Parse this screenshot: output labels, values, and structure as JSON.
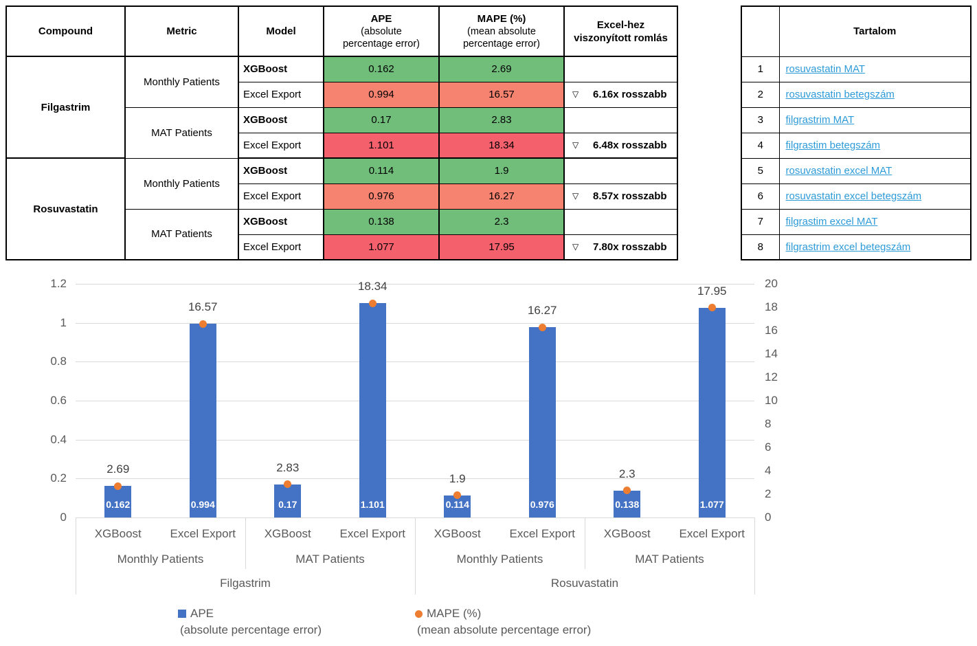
{
  "colors": {
    "bar_blue": "#4472C4",
    "point_orange": "#ED7D31",
    "good_green": "#71BE7B",
    "bad_salmon": "#F5836F",
    "worse_red": "#F4606C",
    "link_blue": "#2E9BD9",
    "grid_gray": "#D9D9D9",
    "axis_text_gray": "#595959"
  },
  "main_table": {
    "headers": {
      "compound": "Compound",
      "metric": "Metric",
      "model": "Model",
      "ape_title": "APE",
      "ape_sub1": "(absolute",
      "ape_sub2": "percentage error)",
      "mape_title": "MAPE (%)",
      "mape_sub1": "(mean absolute",
      "mape_sub2": "percentage error)",
      "romlas1": "Excel-hez",
      "romlas2": "viszonyított romlás"
    },
    "compounds": [
      "Filgastrim",
      "Rosuvastatin"
    ],
    "metric_cells": [
      "Monthly Patients",
      "MAT Patients",
      "Monthly Patients",
      "MAT Patients"
    ],
    "rows": [
      {
        "model": "XGBoost",
        "ape": "0.162",
        "mape": "2.69",
        "tri": "",
        "romlas": ""
      },
      {
        "model": "Excel Export",
        "ape": "0.994",
        "mape": "16.57",
        "tri": "▽",
        "romlas": "6.16x rosszabb"
      },
      {
        "model": "XGBoost",
        "ape": "0.17",
        "mape": "2.83",
        "tri": "",
        "romlas": ""
      },
      {
        "model": "Excel Export",
        "ape": "1.101",
        "mape": "18.34",
        "tri": "▽",
        "romlas": "6.48x rosszabb"
      },
      {
        "model": "XGBoost",
        "ape": "0.114",
        "mape": "1.9",
        "tri": "",
        "romlas": ""
      },
      {
        "model": "Excel Export",
        "ape": "0.976",
        "mape": "16.27",
        "tri": "▽",
        "romlas": "8.57x rosszabb"
      },
      {
        "model": "XGBoost",
        "ape": "0.138",
        "mape": "2.3",
        "tri": "",
        "romlas": ""
      },
      {
        "model": "Excel Export",
        "ape": "1.077",
        "mape": "17.95",
        "tri": "▽",
        "romlas": "7.80x rosszabb"
      }
    ]
  },
  "toc": {
    "title": "Tartalom",
    "items": [
      {
        "num": "1",
        "label": "rosuvastatin MAT"
      },
      {
        "num": "2",
        "label": "rosuvastatin betegszám"
      },
      {
        "num": "3",
        "label": "filgrastrim MAT"
      },
      {
        "num": "4",
        "label": "filgrastim betegszám"
      },
      {
        "num": "5",
        "label": "rosuvastatin excel MAT"
      },
      {
        "num": "6",
        "label": "rosuvastatin excel betegszám"
      },
      {
        "num": "7",
        "label": "filgrastim excel MAT"
      },
      {
        "num": "8",
        "label": "filgrastrim excel betegszám"
      }
    ]
  },
  "chart_data": {
    "type": "bar",
    "subtype": "combo bar + point (secondary axis)",
    "grid": true,
    "legend_position": "bottom",
    "category_levels": {
      "model": [
        "XGBoost",
        "Excel Export",
        "XGBoost",
        "Excel Export",
        "XGBoost",
        "Excel Export",
        "XGBoost",
        "Excel Export"
      ],
      "metric": [
        "Monthly Patients",
        "MAT Patients",
        "Monthly Patients",
        "MAT Patients"
      ],
      "compound": [
        "Filgastrim",
        "Rosuvastatin"
      ]
    },
    "series": [
      {
        "name": "APE (absolute percentage error)",
        "type": "bar",
        "axis": "left",
        "color": "#4472C4",
        "values": [
          0.162,
          0.994,
          0.17,
          1.101,
          0.114,
          0.976,
          0.138,
          1.077
        ],
        "labels": [
          "0.162",
          "0.994",
          "0.17",
          "1.101",
          "0.114",
          "0.976",
          "0.138",
          "1.077"
        ]
      },
      {
        "name": "MAPE (%) (mean absolute percentage error)",
        "type": "point",
        "axis": "right",
        "color": "#ED7D31",
        "values": [
          2.69,
          16.57,
          2.83,
          18.34,
          1.9,
          16.27,
          2.3,
          17.95
        ],
        "labels": [
          "2.69",
          "16.57",
          "2.83",
          "18.34",
          "1.9",
          "16.27",
          "2.3",
          "17.95"
        ]
      }
    ],
    "left_axis": {
      "min": 0,
      "max": 1.2,
      "step": 0.2,
      "ticks": [
        "0",
        "0.2",
        "0.4",
        "0.6",
        "0.8",
        "1",
        "1.2"
      ]
    },
    "right_axis": {
      "min": 0,
      "max": 20,
      "step": 2,
      "ticks": [
        "0",
        "2",
        "4",
        "6",
        "8",
        "10",
        "12",
        "14",
        "16",
        "18",
        "20"
      ]
    },
    "legend": [
      {
        "marker": "square",
        "color": "#4472C4",
        "line1": "APE",
        "line2": "(absolute percentage error)"
      },
      {
        "marker": "circle",
        "color": "#ED7D31",
        "line1": "MAPE (%)",
        "line2": "(mean absolute percentage error)"
      }
    ]
  }
}
